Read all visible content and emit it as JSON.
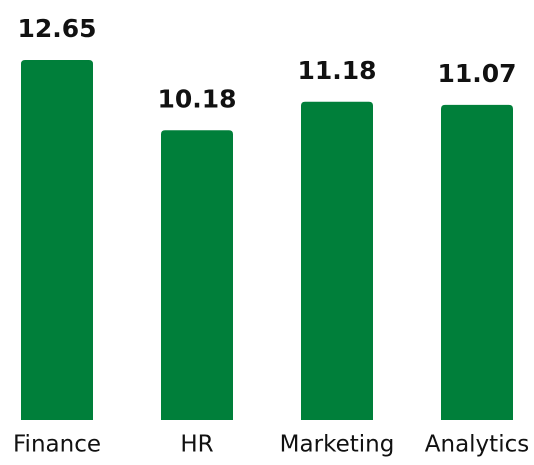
{
  "chart_data": {
    "type": "bar",
    "categories": [
      "Finance",
      "HR",
      "Marketing",
      "Analytics"
    ],
    "values": [
      12.65,
      10.18,
      11.18,
      11.07
    ],
    "color": "#007f3a",
    "ylim": [
      0,
      13
    ]
  }
}
